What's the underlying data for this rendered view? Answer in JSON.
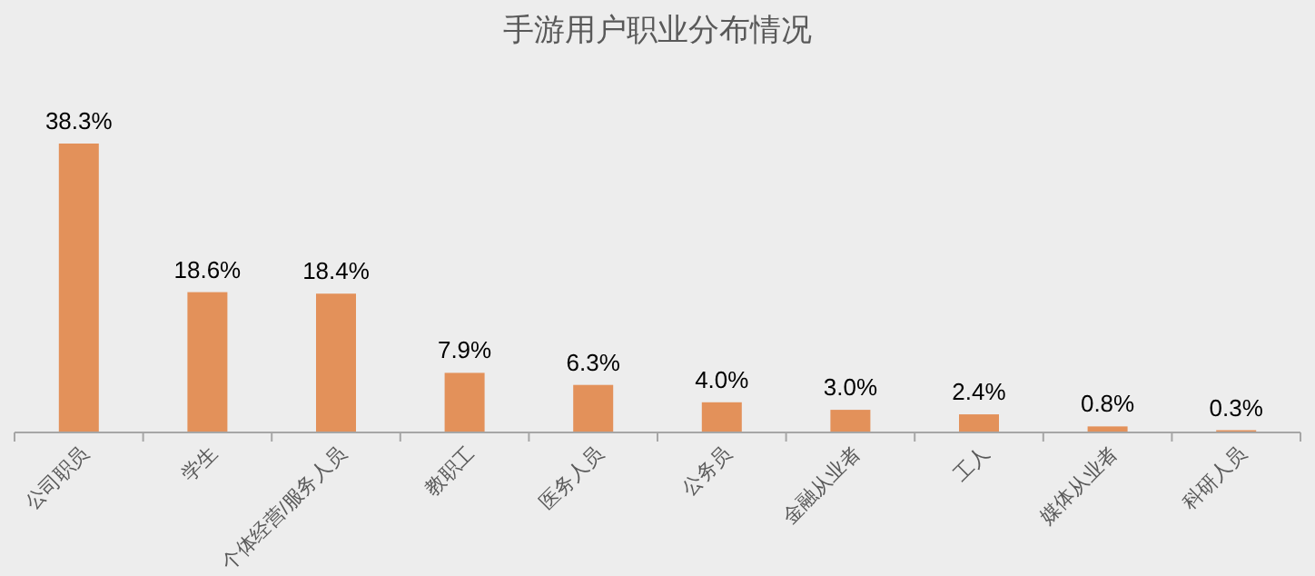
{
  "chart_data": {
    "type": "bar",
    "title": "手游用户职业分布情况",
    "categories": [
      "公司职员",
      "学生",
      "个体经营/服务人员",
      "教职工",
      "医务人员",
      "公务员",
      "金融从业者",
      "工人",
      "媒体从业者",
      "科研人员"
    ],
    "values": [
      38.3,
      18.6,
      18.4,
      7.9,
      6.3,
      4.0,
      3.0,
      2.4,
      0.8,
      0.3
    ],
    "value_labels": [
      "38.3%",
      "18.6%",
      "18.4%",
      "7.9%",
      "6.3%",
      "4.0%",
      "3.0%",
      "2.4%",
      "0.8%",
      "0.3%"
    ],
    "color": "#e3915a"
  }
}
